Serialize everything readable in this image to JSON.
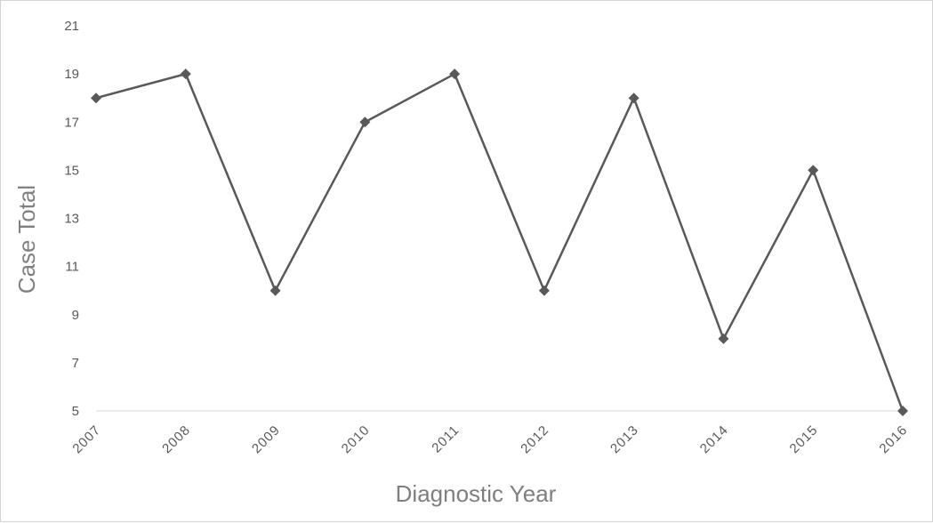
{
  "chart_data": {
    "type": "line",
    "title": "",
    "xlabel": "Diagnostic Year",
    "ylabel": "Case Total",
    "categories": [
      "2007",
      "2008",
      "2009",
      "2010",
      "2011",
      "2012",
      "2013",
      "2014",
      "2015",
      "2016"
    ],
    "series": [
      {
        "values": [
          18,
          19,
          10,
          17,
          19,
          10,
          18,
          8,
          15,
          5
        ]
      }
    ],
    "ylim": [
      5,
      21
    ],
    "yticks": [
      "5",
      "7",
      "9",
      "11",
      "13",
      "15",
      "17",
      "19",
      "21"
    ],
    "grid": false,
    "legend": "none",
    "line_color": "#595959",
    "marker": "diamond"
  }
}
